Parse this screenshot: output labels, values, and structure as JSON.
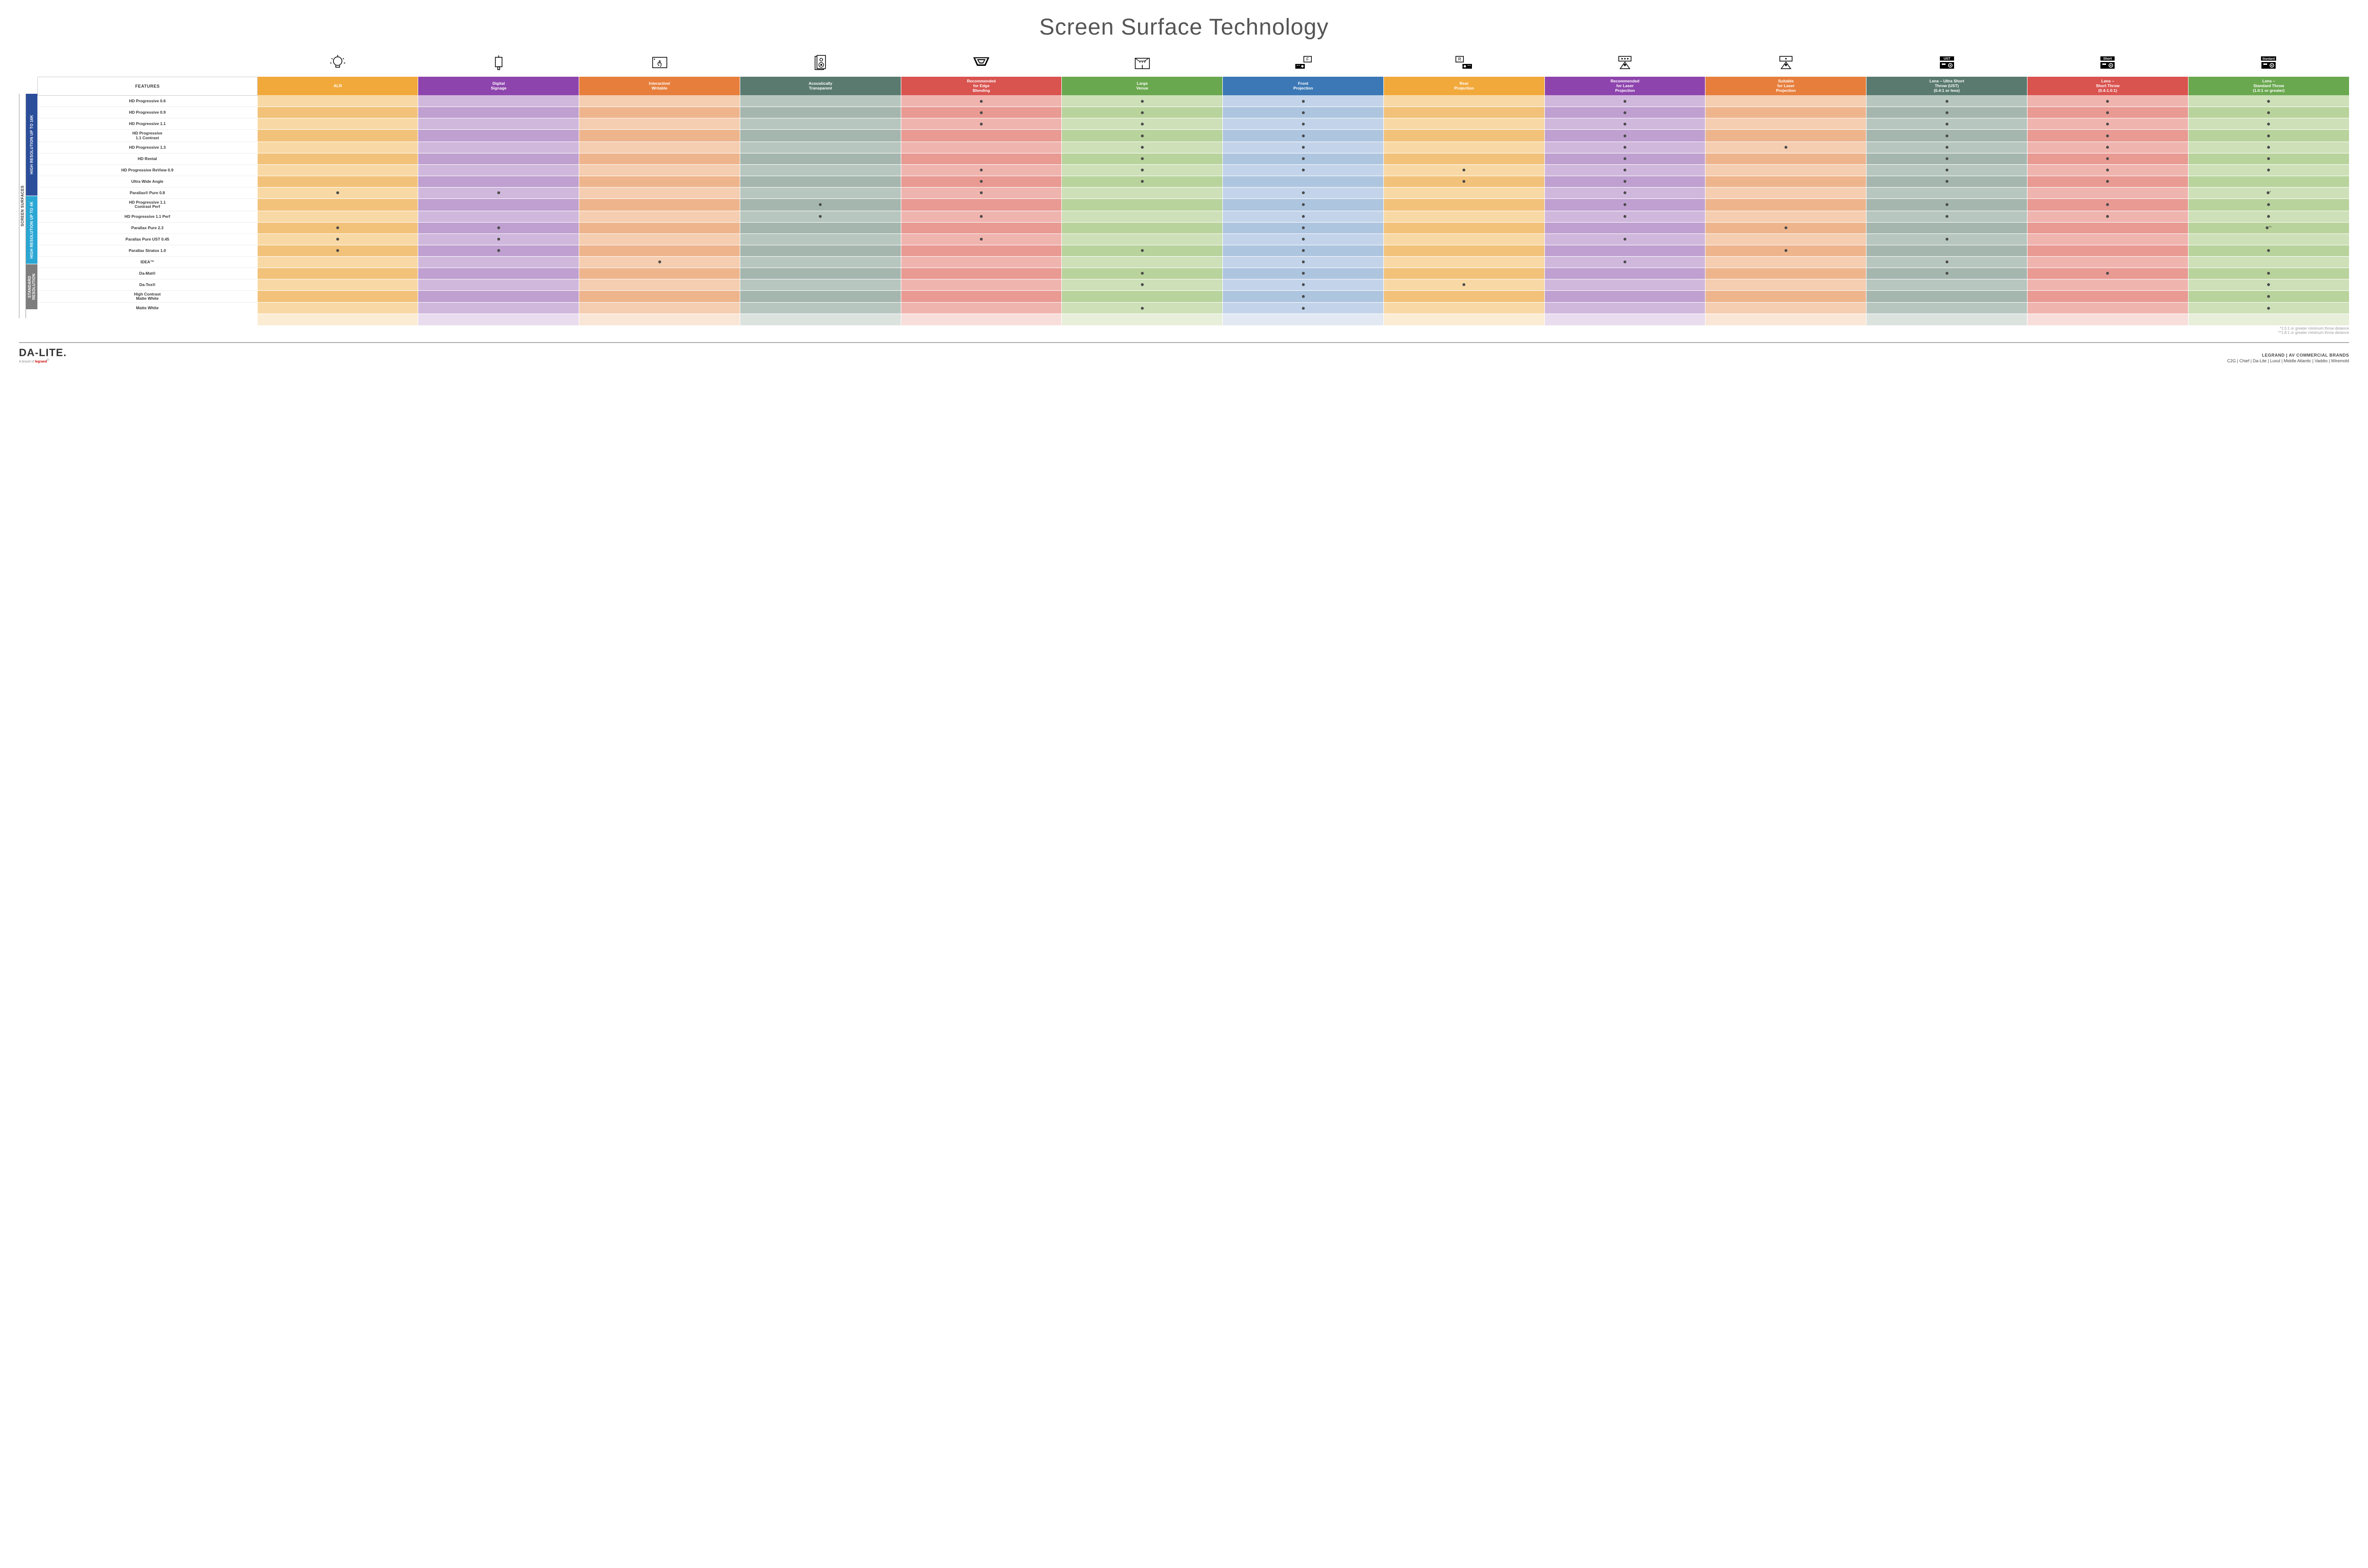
{
  "title": "Screen Surface Technology",
  "columns": [
    {
      "key": "alr",
      "label": "ALR",
      "color": "#f2a93c"
    },
    {
      "key": "signage",
      "label": "Digital\nSignage",
      "color": "#8e44ad"
    },
    {
      "key": "interactive",
      "label": "Interactive/\nWritable",
      "color": "#e77e3c"
    },
    {
      "key": "acoustic",
      "label": "Acoustically\nTransparent",
      "color": "#5a7a6f"
    },
    {
      "key": "edge",
      "label": "Recommended\nfor Edge\nBlending",
      "color": "#d9534f"
    },
    {
      "key": "large",
      "label": "Large\nVenue",
      "color": "#6aa84f"
    },
    {
      "key": "front",
      "label": "Front\nProjection",
      "color": "#3b78b5"
    },
    {
      "key": "rear",
      "label": "Rear\nProjection",
      "color": "#f2a93c"
    },
    {
      "key": "reclaser",
      "label": "Recommended\nfor Laser\nProjection",
      "color": "#8e44ad"
    },
    {
      "key": "suitlaser",
      "label": "Suitable\nfor Laser\nProjection",
      "color": "#e77e3c"
    },
    {
      "key": "ust",
      "label": "Lens – Ultra Short\nThrow (UST)\n(0.4:1 or less)",
      "color": "#5a7a6f"
    },
    {
      "key": "short",
      "label": "Lens –\nShort Throw\n(0.4-1.0:1)",
      "color": "#d9534f"
    },
    {
      "key": "std",
      "label": "Lens –\nStandard Throw\n(1.0:1 or greater)",
      "color": "#6aa84f"
    }
  ],
  "groups": [
    {
      "key": "g16k",
      "label": "HIGH RESOLUTION UP TO 16K",
      "color": "#2b4e9b",
      "rows": 9
    },
    {
      "key": "g4k",
      "label": "HIGH RESOLUTION UP TO 4K",
      "color": "#2aa7d4",
      "rows": 6
    },
    {
      "key": "gstd",
      "label": "STANDARD\nRESOLUTION",
      "color": "#7d7d7d",
      "rows": 4
    }
  ],
  "sideOuter": "SCREEN SURFACES",
  "featuresHeader": "FEATURES",
  "rows": [
    {
      "g": "g16k",
      "name": "HD Progressive 0.6",
      "marks": {
        "edge": "•",
        "large": "•",
        "front": "•",
        "reclaser": "•",
        "ust": "•",
        "short": "•",
        "std": "•"
      }
    },
    {
      "g": "g16k",
      "name": "HD Progressive 0.9",
      "marks": {
        "edge": "•",
        "large": "•",
        "front": "•",
        "reclaser": "•",
        "ust": "•",
        "short": "•",
        "std": "•"
      }
    },
    {
      "g": "g16k",
      "name": "HD Progressive 1.1",
      "marks": {
        "edge": "•",
        "large": "•",
        "front": "•",
        "reclaser": "•",
        "ust": "•",
        "short": "•",
        "std": "•"
      }
    },
    {
      "g": "g16k",
      "name": "HD Progressive\n1.1 Contrast",
      "marks": {
        "large": "•",
        "front": "•",
        "reclaser": "•",
        "ust": "•",
        "short": "•",
        "std": "•"
      }
    },
    {
      "g": "g16k",
      "name": "HD Progressive 1.3",
      "marks": {
        "large": "•",
        "front": "•",
        "reclaser": "•",
        "suitlaser": "•",
        "ust": "•",
        "short": "•",
        "std": "•"
      }
    },
    {
      "g": "g16k",
      "name": "HD Rental",
      "marks": {
        "large": "•",
        "front": "•",
        "reclaser": "•",
        "ust": "•",
        "short": "•",
        "std": "•"
      }
    },
    {
      "g": "g16k",
      "name": "HD Progressive ReView 0.9",
      "marks": {
        "edge": "•",
        "large": "•",
        "front": "•",
        "rear": "•",
        "reclaser": "•",
        "ust": "•",
        "short": "•",
        "std": "•"
      }
    },
    {
      "g": "g16k",
      "name": "Ultra Wide Angle",
      "marks": {
        "edge": "•",
        "large": "•",
        "rear": "•",
        "reclaser": "•",
        "ust": "•",
        "short": "•"
      }
    },
    {
      "g": "g16k",
      "name": "Parallax® Pure 0.8",
      "marks": {
        "alr": "•",
        "signage": "•",
        "edge": "•",
        "front": "•",
        "reclaser": "•",
        "std": "•*"
      }
    },
    {
      "g": "g4k",
      "name": "HD Progressive 1.1\nContrast Perf",
      "marks": {
        "acoustic": "•",
        "front": "•",
        "reclaser": "•",
        "ust": "•",
        "short": "•",
        "std": "•"
      }
    },
    {
      "g": "g4k",
      "name": "HD Progressive 1.1 Perf",
      "marks": {
        "acoustic": "•",
        "edge": "•",
        "front": "•",
        "reclaser": "•",
        "ust": "•",
        "short": "•",
        "std": "•"
      }
    },
    {
      "g": "g4k",
      "name": "Parallax Pure 2.3",
      "marks": {
        "alr": "•",
        "signage": "•",
        "front": "•",
        "suitlaser": "•",
        "std": "•**"
      }
    },
    {
      "g": "g4k",
      "name": "Parallax Pure UST 0.45",
      "marks": {
        "alr": "•",
        "signage": "•",
        "edge": "•",
        "front": "•",
        "reclaser": "•",
        "ust": "•"
      }
    },
    {
      "g": "g4k",
      "name": "Parallax Stratos 1.0",
      "marks": {
        "alr": "•",
        "signage": "•",
        "large": "•",
        "front": "•",
        "suitlaser": "•",
        "std": "•"
      }
    },
    {
      "g": "g4k",
      "name": "IDEA™",
      "marks": {
        "interactive": "•",
        "front": "•",
        "reclaser": "•",
        "ust": "•"
      }
    },
    {
      "g": "gstd",
      "name": "Da-Mat®",
      "marks": {
        "large": "•",
        "front": "•",
        "ust": "•",
        "short": "•",
        "std": "•"
      }
    },
    {
      "g": "gstd",
      "name": "Da-Tex®",
      "marks": {
        "large": "•",
        "front": "•",
        "rear": "•",
        "std": "•"
      }
    },
    {
      "g": "gstd",
      "name": "High Contrast\nMatte White",
      "marks": {
        "front": "•",
        "std": "•"
      }
    },
    {
      "g": "gstd",
      "name": "Matte White",
      "marks": {
        "large": "•",
        "front": "•",
        "std": "•"
      }
    }
  ],
  "shades": {
    "alr": [
      "#f8d9a5",
      "#f2c27a"
    ],
    "signage": [
      "#d0b8dd",
      "#bfa0d0"
    ],
    "interactive": [
      "#f5cdb0",
      "#eeb58d"
    ],
    "acoustic": [
      "#b8c6c0",
      "#a5b6af"
    ],
    "edge": [
      "#f0b4af",
      "#e89a93"
    ],
    "large": [
      "#cde0b8",
      "#b9d39c"
    ],
    "front": [
      "#c3d4ea",
      "#aec5e0"
    ],
    "rear": [
      "#f8d9a5",
      "#f2c27a"
    ],
    "reclaser": [
      "#d0b8dd",
      "#bfa0d0"
    ],
    "suitlaser": [
      "#f5cdb0",
      "#eeb58d"
    ],
    "ust": [
      "#b8c6c0",
      "#a5b6af"
    ],
    "short": [
      "#f0b4af",
      "#e89a93"
    ],
    "std": [
      "#cde0b8",
      "#b9d39c"
    ]
  },
  "bottomRowShades": [
    "#fbecd4",
    "#e9dcee",
    "#fae6d7",
    "#dce3df",
    "#f8dedb",
    "#e7efdb",
    "#e2e9f3",
    "#fbecd4",
    "#e9dcee",
    "#fae6d7",
    "#dce3df",
    "#f8dedb",
    "#e7efdb"
  ],
  "footnotes": [
    "*1.5:1 or greater minimum throw distance",
    "**1.8:1 or greater minimum throw distance"
  ],
  "footer": {
    "logo": "DA-LITE.",
    "logoSub": "A brand of ",
    "logoSubBrand": "legrand",
    "brandsTop": "LEGRAND | AV COMMERCIAL BRANDS",
    "brandsList": "C2G  |  Chief  |  Da-Lite  |  Luxul  |  Middle Atlantic  |  Vaddio  |  Wiremold"
  },
  "icons": {
    "alr": "bulb",
    "signage": "sign",
    "interactive": "touch",
    "acoustic": "speaker",
    "edge": "blend",
    "large": "venue",
    "front": "projF",
    "rear": "projR",
    "reclaser": "laser3",
    "suitlaser": "laser1",
    "ust": "projUST",
    "short": "projShort",
    "std": "projStd"
  }
}
